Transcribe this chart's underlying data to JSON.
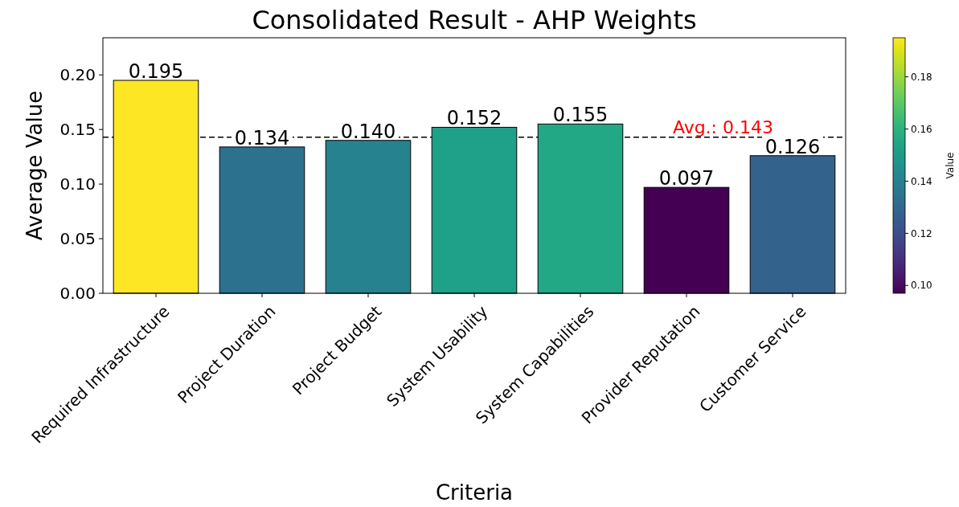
{
  "chart_data": {
    "type": "bar",
    "title": "Consolidated Result - AHP Weights",
    "xlabel": "Criteria",
    "ylabel": "Average Value",
    "clabel": "Value",
    "categories": [
      "Required Infrastructure",
      "Project Duration",
      "Project Budget",
      "System Usability",
      "System Capabilities",
      "Provider Reputation",
      "Customer Service"
    ],
    "values": [
      0.195,
      0.134,
      0.14,
      0.152,
      0.155,
      0.097,
      0.126
    ],
    "colors": [
      "#fde725",
      "#2c728e",
      "#26828e",
      "#1fa088",
      "#22a884",
      "#440154",
      "#33638d"
    ],
    "value_labels": [
      "0.195",
      "0.134",
      "0.140",
      "0.152",
      "0.155",
      "0.097",
      "0.126"
    ],
    "ylim": [
      0,
      0.234
    ],
    "yticks": [
      {
        "value": 0,
        "label": "0.00"
      },
      {
        "value": 0.05,
        "label": "0.05"
      },
      {
        "value": 0.1,
        "label": "0.10"
      },
      {
        "value": 0.15,
        "label": "0.15"
      },
      {
        "value": 0.2,
        "label": "0.20"
      }
    ],
    "clim": [
      0.097,
      0.195
    ],
    "cticks": [
      {
        "value": 0.1,
        "label": "0.10"
      },
      {
        "value": 0.12,
        "label": "0.12"
      },
      {
        "value": 0.14,
        "label": "0.14"
      },
      {
        "value": 0.16,
        "label": "0.16"
      },
      {
        "value": 0.18,
        "label": "0.18"
      }
    ],
    "ref_lines": [
      {
        "axis": "y",
        "value": 0.143,
        "label": "Avg.: 0.143",
        "line_style": "dashed"
      }
    ],
    "grid": false
  }
}
